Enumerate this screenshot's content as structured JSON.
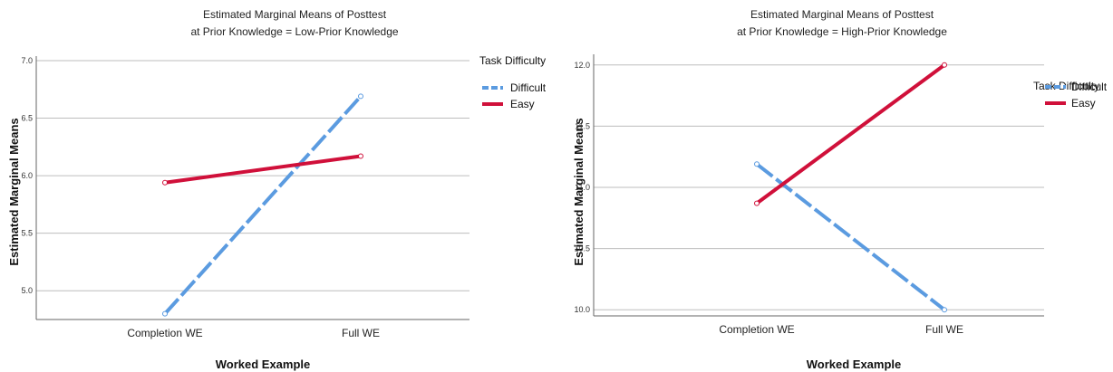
{
  "chart_data": [
    {
      "type": "line",
      "title": [
        "Estimated Marginal Means of Posttest",
        "at Prior Knowledge = Low-Prior Knowledge"
      ],
      "xlabel": "Worked Example",
      "ylabel": "Estimated Marginal Means",
      "categories": [
        "Completion WE",
        "Full WE"
      ],
      "ylim": [
        4.75,
        7.0
      ],
      "yticks": [
        "5.0",
        "5.5",
        "6.0",
        "6.5",
        "7.0"
      ],
      "grid": true,
      "legend_position": "right",
      "legend_title": "Task Difficulty",
      "series": [
        {
          "name": "Difficult",
          "values": [
            4.8,
            6.69
          ],
          "color": "#5b9be0",
          "style": "dashed"
        },
        {
          "name": "Easy",
          "values": [
            5.94,
            6.17
          ],
          "color": "#d0103a",
          "style": "solid"
        }
      ]
    },
    {
      "type": "line",
      "title": [
        "Estimated Marginal Means of Posttest",
        "at Prior Knowledge = High-Prior Knowledge"
      ],
      "xlabel": "Worked Example",
      "ylabel": "Estimated Marginal Means",
      "categories": [
        "Completion WE",
        "Full WE"
      ],
      "ylim": [
        9.95,
        12.05
      ],
      "yticks": [
        "10.0",
        "10.5",
        "11.0",
        "11.5",
        "12.0"
      ],
      "grid": true,
      "legend_position": "right",
      "legend_title": "Task Difficulty",
      "series": [
        {
          "name": "Difficult",
          "values": [
            11.19,
            10.0
          ],
          "color": "#5b9be0",
          "style": "dashed"
        },
        {
          "name": "Easy",
          "values": [
            10.87,
            12.0
          ],
          "color": "#d0103a",
          "style": "solid"
        }
      ]
    }
  ]
}
